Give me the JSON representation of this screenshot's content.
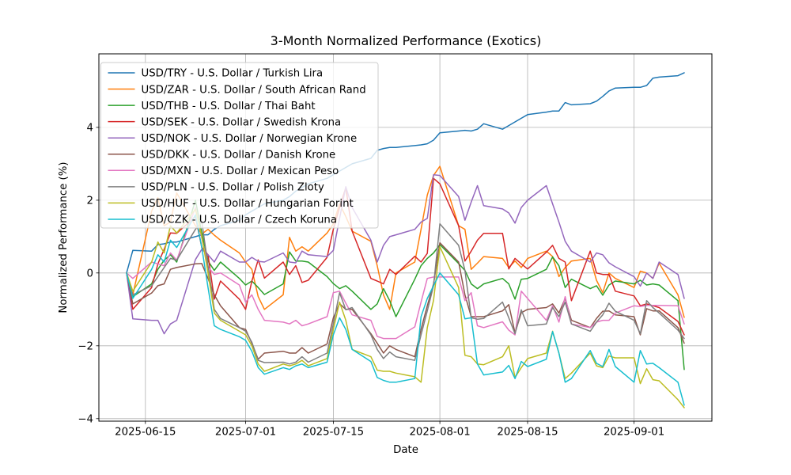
{
  "page": {
    "background": "#ffffff"
  },
  "chart_data": {
    "type": "line",
    "title": "3-Month Normalized Performance (Exotics)",
    "xlabel": "Date",
    "ylabel": "Normalized Performance (%)",
    "grid": true,
    "grid_color": "#b0b0b0",
    "legend_position": "upper-left",
    "legend_border_color": "#cccccc",
    "ylim": [
      -4.07,
      6.02
    ],
    "xlim_days": [
      -4.42,
      93.42
    ],
    "yticks": [
      {
        "value": 4,
        "label": "4"
      },
      {
        "value": 2,
        "label": "2"
      },
      {
        "value": 0,
        "label": "0"
      },
      {
        "value": -2,
        "label": "−2"
      },
      {
        "value": -4,
        "label": "−4"
      }
    ],
    "xticks": [
      {
        "date": "2025-06-15",
        "label": "2025-06-15"
      },
      {
        "date": "2025-07-01",
        "label": "2025-07-01"
      },
      {
        "date": "2025-07-15",
        "label": "2025-07-15"
      },
      {
        "date": "2025-08-01",
        "label": "2025-08-01"
      },
      {
        "date": "2025-08-15",
        "label": "2025-08-15"
      },
      {
        "date": "2025-09-01",
        "label": "2025-09-01"
      }
    ],
    "dates": [
      "2025-06-12",
      "2025-06-13",
      "2025-06-16",
      "2025-06-17",
      "2025-06-18",
      "2025-06-19",
      "2025-06-20",
      "2025-06-23",
      "2025-06-24",
      "2025-06-25",
      "2025-06-26",
      "2025-06-27",
      "2025-06-30",
      "2025-07-01",
      "2025-07-02",
      "2025-07-03",
      "2025-07-04",
      "2025-07-07",
      "2025-07-08",
      "2025-07-09",
      "2025-07-10",
      "2025-07-11",
      "2025-07-14",
      "2025-07-15",
      "2025-07-16",
      "2025-07-17",
      "2025-07-18",
      "2025-07-21",
      "2025-07-22",
      "2025-07-23",
      "2025-07-24",
      "2025-07-25",
      "2025-07-28",
      "2025-07-29",
      "2025-07-30",
      "2025-07-31",
      "2025-08-01",
      "2025-08-04",
      "2025-08-05",
      "2025-08-06",
      "2025-08-07",
      "2025-08-08",
      "2025-08-11",
      "2025-08-12",
      "2025-08-13",
      "2025-08-14",
      "2025-08-15",
      "2025-08-18",
      "2025-08-19",
      "2025-08-20",
      "2025-08-21",
      "2025-08-22",
      "2025-08-25",
      "2025-08-26",
      "2025-08-27",
      "2025-08-28",
      "2025-08-29",
      "2025-09-01",
      "2025-09-02",
      "2025-09-03",
      "2025-09-04",
      "2025-09-05",
      "2025-09-08",
      "2025-09-09"
    ],
    "series": [
      {
        "code": "USD/TRY",
        "label": "USD/TRY - U.S. Dollar / Turkish Lira",
        "color": "#1f77b4",
        "values": [
          0.0,
          0.62,
          0.6,
          0.78,
          0.8,
          0.85,
          0.85,
          1.0,
          1.05,
          1.05,
          1.2,
          1.3,
          1.45,
          1.6,
          1.7,
          1.8,
          1.9,
          2.0,
          2.1,
          2.25,
          2.35,
          2.45,
          2.6,
          2.7,
          2.8,
          2.9,
          3.0,
          3.15,
          3.37,
          3.42,
          3.45,
          3.45,
          3.5,
          3.52,
          3.55,
          3.65,
          3.85,
          3.9,
          3.92,
          3.9,
          3.95,
          4.1,
          3.95,
          4.05,
          4.15,
          4.25,
          4.35,
          4.42,
          4.45,
          4.45,
          4.68,
          4.62,
          4.65,
          4.72,
          4.85,
          5.0,
          5.08,
          5.1,
          5.1,
          5.15,
          5.35,
          5.38,
          5.42,
          5.5
        ]
      },
      {
        "code": "USD/ZAR",
        "label": "USD/ZAR - U.S. Dollar / South African Rand",
        "color": "#ff7f0e",
        "values": [
          0.0,
          -0.6,
          1.7,
          2.07,
          1.3,
          1.4,
          2.2,
          1.3,
          1.07,
          1.2,
          1.04,
          0.9,
          0.55,
          0.3,
          0.1,
          -0.65,
          -1.0,
          -0.6,
          0.98,
          0.6,
          0.72,
          0.6,
          1.1,
          1.35,
          1.9,
          1.55,
          1.15,
          0.87,
          0.2,
          -0.6,
          -1.0,
          0.0,
          0.3,
          1.2,
          2.14,
          2.68,
          2.93,
          1.3,
          1.2,
          0.1,
          0.27,
          0.45,
          0.4,
          0.15,
          0.33,
          0.15,
          0.4,
          0.6,
          0.45,
          -0.1,
          0.15,
          0.33,
          0.4,
          -0.2,
          -0.54,
          0.0,
          -0.15,
          -0.4,
          0.05,
          0.0,
          -0.15,
          0.27,
          -0.6,
          -1.22
        ]
      },
      {
        "code": "USD/THB",
        "label": "USD/THB - U.S. Dollar / Thai Baht",
        "color": "#2ca02c",
        "values": [
          0.0,
          -0.65,
          -0.3,
          0.1,
          0.35,
          0.5,
          0.3,
          2.0,
          1.1,
          0.33,
          0.07,
          0.3,
          -0.15,
          -0.33,
          -0.22,
          -0.4,
          -0.59,
          -0.3,
          0.58,
          0.33,
          0.33,
          0.3,
          -0.1,
          -0.29,
          -0.43,
          -0.35,
          -0.5,
          -1.0,
          -0.85,
          -0.43,
          -0.76,
          -1.2,
          -0.17,
          0.2,
          0.4,
          0.55,
          0.78,
          0.26,
          0.07,
          -0.3,
          -0.43,
          -0.3,
          -0.15,
          -0.3,
          -0.72,
          -0.17,
          -0.15,
          0.1,
          0.44,
          0.2,
          -0.4,
          -0.17,
          -0.43,
          -0.35,
          -0.61,
          -0.33,
          -0.22,
          -0.3,
          -0.2,
          -0.33,
          -0.3,
          -0.33,
          -0.76,
          -2.65
        ]
      },
      {
        "code": "USD/SEK",
        "label": "USD/SEK - U.S. Dollar / Swedish Krona",
        "color": "#d62728",
        "values": [
          0.0,
          -1.0,
          -0.4,
          0.25,
          0.65,
          1.1,
          1.09,
          1.55,
          0.7,
          0.5,
          -0.72,
          -0.22,
          -0.72,
          -1.0,
          -0.22,
          0.36,
          -0.14,
          0.3,
          -0.04,
          0.2,
          -0.26,
          -0.2,
          0.43,
          1.2,
          1.8,
          2.35,
          1.15,
          -0.15,
          -0.22,
          -0.3,
          0.1,
          -0.04,
          0.46,
          0.3,
          0.54,
          2.6,
          2.45,
          1.3,
          0.33,
          0.6,
          0.9,
          1.09,
          1.09,
          0.11,
          0.4,
          0.25,
          0.11,
          0.57,
          0.76,
          0.4,
          0.3,
          -0.76,
          0.6,
          0.0,
          -0.04,
          -0.04,
          -0.5,
          -0.63,
          -0.9,
          -0.85,
          -0.9,
          -0.95,
          -1.33,
          -1.7
        ]
      },
      {
        "code": "USD/NOK",
        "label": "USD/NOK - U.S. Dollar / Norwegian Krone",
        "color": "#9467bd",
        "values": [
          0.0,
          -1.26,
          -1.3,
          -1.3,
          -1.67,
          -1.4,
          -1.3,
          0.37,
          0.65,
          0.5,
          0.3,
          0.6,
          0.3,
          0.3,
          0.43,
          0.32,
          0.3,
          0.55,
          0.3,
          0.28,
          0.6,
          0.5,
          0.45,
          0.62,
          1.5,
          2.37,
          1.8,
          0.9,
          0.3,
          0.76,
          1.0,
          1.05,
          1.2,
          1.4,
          1.5,
          2.7,
          2.68,
          2.1,
          1.45,
          1.95,
          2.4,
          1.85,
          1.76,
          1.65,
          1.37,
          1.8,
          2.0,
          2.4,
          1.9,
          1.4,
          0.87,
          0.6,
          0.3,
          0.55,
          0.5,
          0.28,
          0.17,
          -0.1,
          -0.36,
          0.0,
          -0.15,
          0.3,
          -0.04,
          -0.7
        ]
      },
      {
        "code": "USD/DKK",
        "label": "USD/DKK - U.S. Dollar / Danish Krone",
        "color": "#8c564b",
        "values": [
          0.0,
          -0.85,
          -0.55,
          -0.35,
          -0.3,
          0.1,
          0.15,
          0.25,
          0.26,
          -0.15,
          -0.6,
          -0.9,
          -1.5,
          -1.55,
          -1.93,
          -2.37,
          -2.2,
          -2.15,
          -2.2,
          -2.2,
          -2.05,
          -2.2,
          -1.95,
          -1.23,
          -0.84,
          -1.0,
          -1.0,
          -1.67,
          -1.93,
          -2.2,
          -2.0,
          -2.1,
          -2.3,
          -1.55,
          -0.9,
          -0.3,
          0.83,
          0.3,
          -0.6,
          -1.2,
          -1.2,
          -1.2,
          -1.04,
          -0.87,
          -1.65,
          -1.09,
          -1.0,
          -0.95,
          -0.85,
          -1.1,
          -0.7,
          -1.3,
          -1.5,
          -1.25,
          -1.05,
          -1.04,
          -1.15,
          -1.2,
          -1.7,
          -0.98,
          -1.04,
          -1.04,
          -1.5,
          -1.93
        ]
      },
      {
        "code": "USD/MXN",
        "label": "USD/MXN - U.S. Dollar / Mexican Peso",
        "color": "#e377c2",
        "values": [
          0.0,
          -0.15,
          0.3,
          0.25,
          0.2,
          0.55,
          0.35,
          1.8,
          0.95,
          0.17,
          -0.04,
          0.0,
          -0.33,
          -0.8,
          -0.6,
          -1.0,
          -1.3,
          -1.35,
          -1.4,
          -1.3,
          -1.45,
          -1.4,
          -1.2,
          -0.54,
          -0.5,
          -0.83,
          -1.15,
          -1.3,
          -1.74,
          -1.8,
          -1.8,
          -1.8,
          -1.48,
          -0.8,
          -0.15,
          -0.11,
          -0.11,
          -0.11,
          -0.76,
          -0.54,
          -1.45,
          -1.5,
          -1.34,
          -1.57,
          -1.7,
          -0.5,
          -0.7,
          -1.3,
          -0.9,
          -1.35,
          -0.65,
          -1.4,
          -1.5,
          -1.35,
          -1.3,
          -1.3,
          -1.1,
          -0.9,
          -0.92,
          -0.89,
          -0.89,
          -0.89,
          -0.9,
          -1.4
        ]
      },
      {
        "code": "USD/PLN",
        "label": "USD/PLN - U.S. Dollar / Polish Zloty",
        "color": "#7f7f7f",
        "values": [
          0.0,
          -0.6,
          -0.35,
          -0.1,
          0.15,
          0.4,
          0.35,
          1.2,
          1.41,
          0.2,
          -1.0,
          -1.25,
          -1.5,
          -1.6,
          -1.9,
          -2.4,
          -2.46,
          -2.45,
          -2.5,
          -2.45,
          -2.3,
          -2.45,
          -2.2,
          -1.4,
          -0.54,
          -1.01,
          -0.95,
          -1.7,
          -2.1,
          -2.35,
          -2.17,
          -2.3,
          -2.4,
          -1.7,
          -1.04,
          -0.35,
          1.35,
          0.76,
          0.07,
          -1.23,
          -1.27,
          -1.25,
          -0.8,
          -1.23,
          -1.67,
          -1.01,
          -1.45,
          -1.4,
          -0.95,
          -1.2,
          -0.8,
          -1.4,
          -1.6,
          -1.35,
          -1.15,
          -0.83,
          -1.05,
          -1.3,
          -1.67,
          -0.76,
          -0.95,
          -1.1,
          -1.57,
          -1.8
        ]
      },
      {
        "code": "USD/HUF",
        "label": "USD/HUF - U.S. Dollar / Hungarian Forint",
        "color": "#bcbd22",
        "values": [
          0.0,
          -0.5,
          0.3,
          0.85,
          0.55,
          1.3,
          1.1,
          1.75,
          1.0,
          0.0,
          -1.1,
          -1.3,
          -1.6,
          -1.7,
          -2.0,
          -2.5,
          -2.7,
          -2.5,
          -2.55,
          -2.5,
          -2.4,
          -2.55,
          -2.35,
          -1.55,
          -0.8,
          -1.3,
          -2.1,
          -2.3,
          -2.67,
          -2.7,
          -2.7,
          -2.75,
          -2.85,
          -3.0,
          -1.5,
          -0.75,
          0.72,
          -0.4,
          -2.26,
          -2.3,
          -2.5,
          -2.52,
          -2.3,
          -2.0,
          -2.87,
          -2.6,
          -2.35,
          -2.2,
          -1.6,
          -2.2,
          -2.9,
          -2.75,
          -2.2,
          -2.55,
          -2.6,
          -2.28,
          -2.33,
          -2.33,
          -3.04,
          -2.63,
          -2.93,
          -2.96,
          -3.48,
          -3.7
        ]
      },
      {
        "code": "USD/CZK",
        "label": "USD/CZK - U.S. Dollar / Czech Koruna",
        "color": "#17becf",
        "values": [
          0.0,
          -0.7,
          0.1,
          0.5,
          0.3,
          0.9,
          0.7,
          1.6,
          0.7,
          -0.4,
          -1.45,
          -1.55,
          -1.75,
          -1.85,
          -2.15,
          -2.6,
          -2.78,
          -2.6,
          -2.65,
          -2.55,
          -2.5,
          -2.6,
          -2.45,
          -1.7,
          -1.23,
          -1.55,
          -2.1,
          -2.43,
          -2.87,
          -2.95,
          -3.0,
          -3.0,
          -2.9,
          -1.2,
          -0.7,
          -0.35,
          0.0,
          -0.6,
          -1.26,
          -1.23,
          -2.5,
          -2.8,
          -2.72,
          -2.54,
          -2.9,
          -2.43,
          -2.57,
          -2.37,
          -1.61,
          -2.2,
          -3.0,
          -2.9,
          -2.13,
          -2.48,
          -2.57,
          -2.1,
          -2.57,
          -3.0,
          -2.13,
          -2.5,
          -2.48,
          -2.6,
          -3.0,
          -3.63
        ]
      }
    ]
  }
}
